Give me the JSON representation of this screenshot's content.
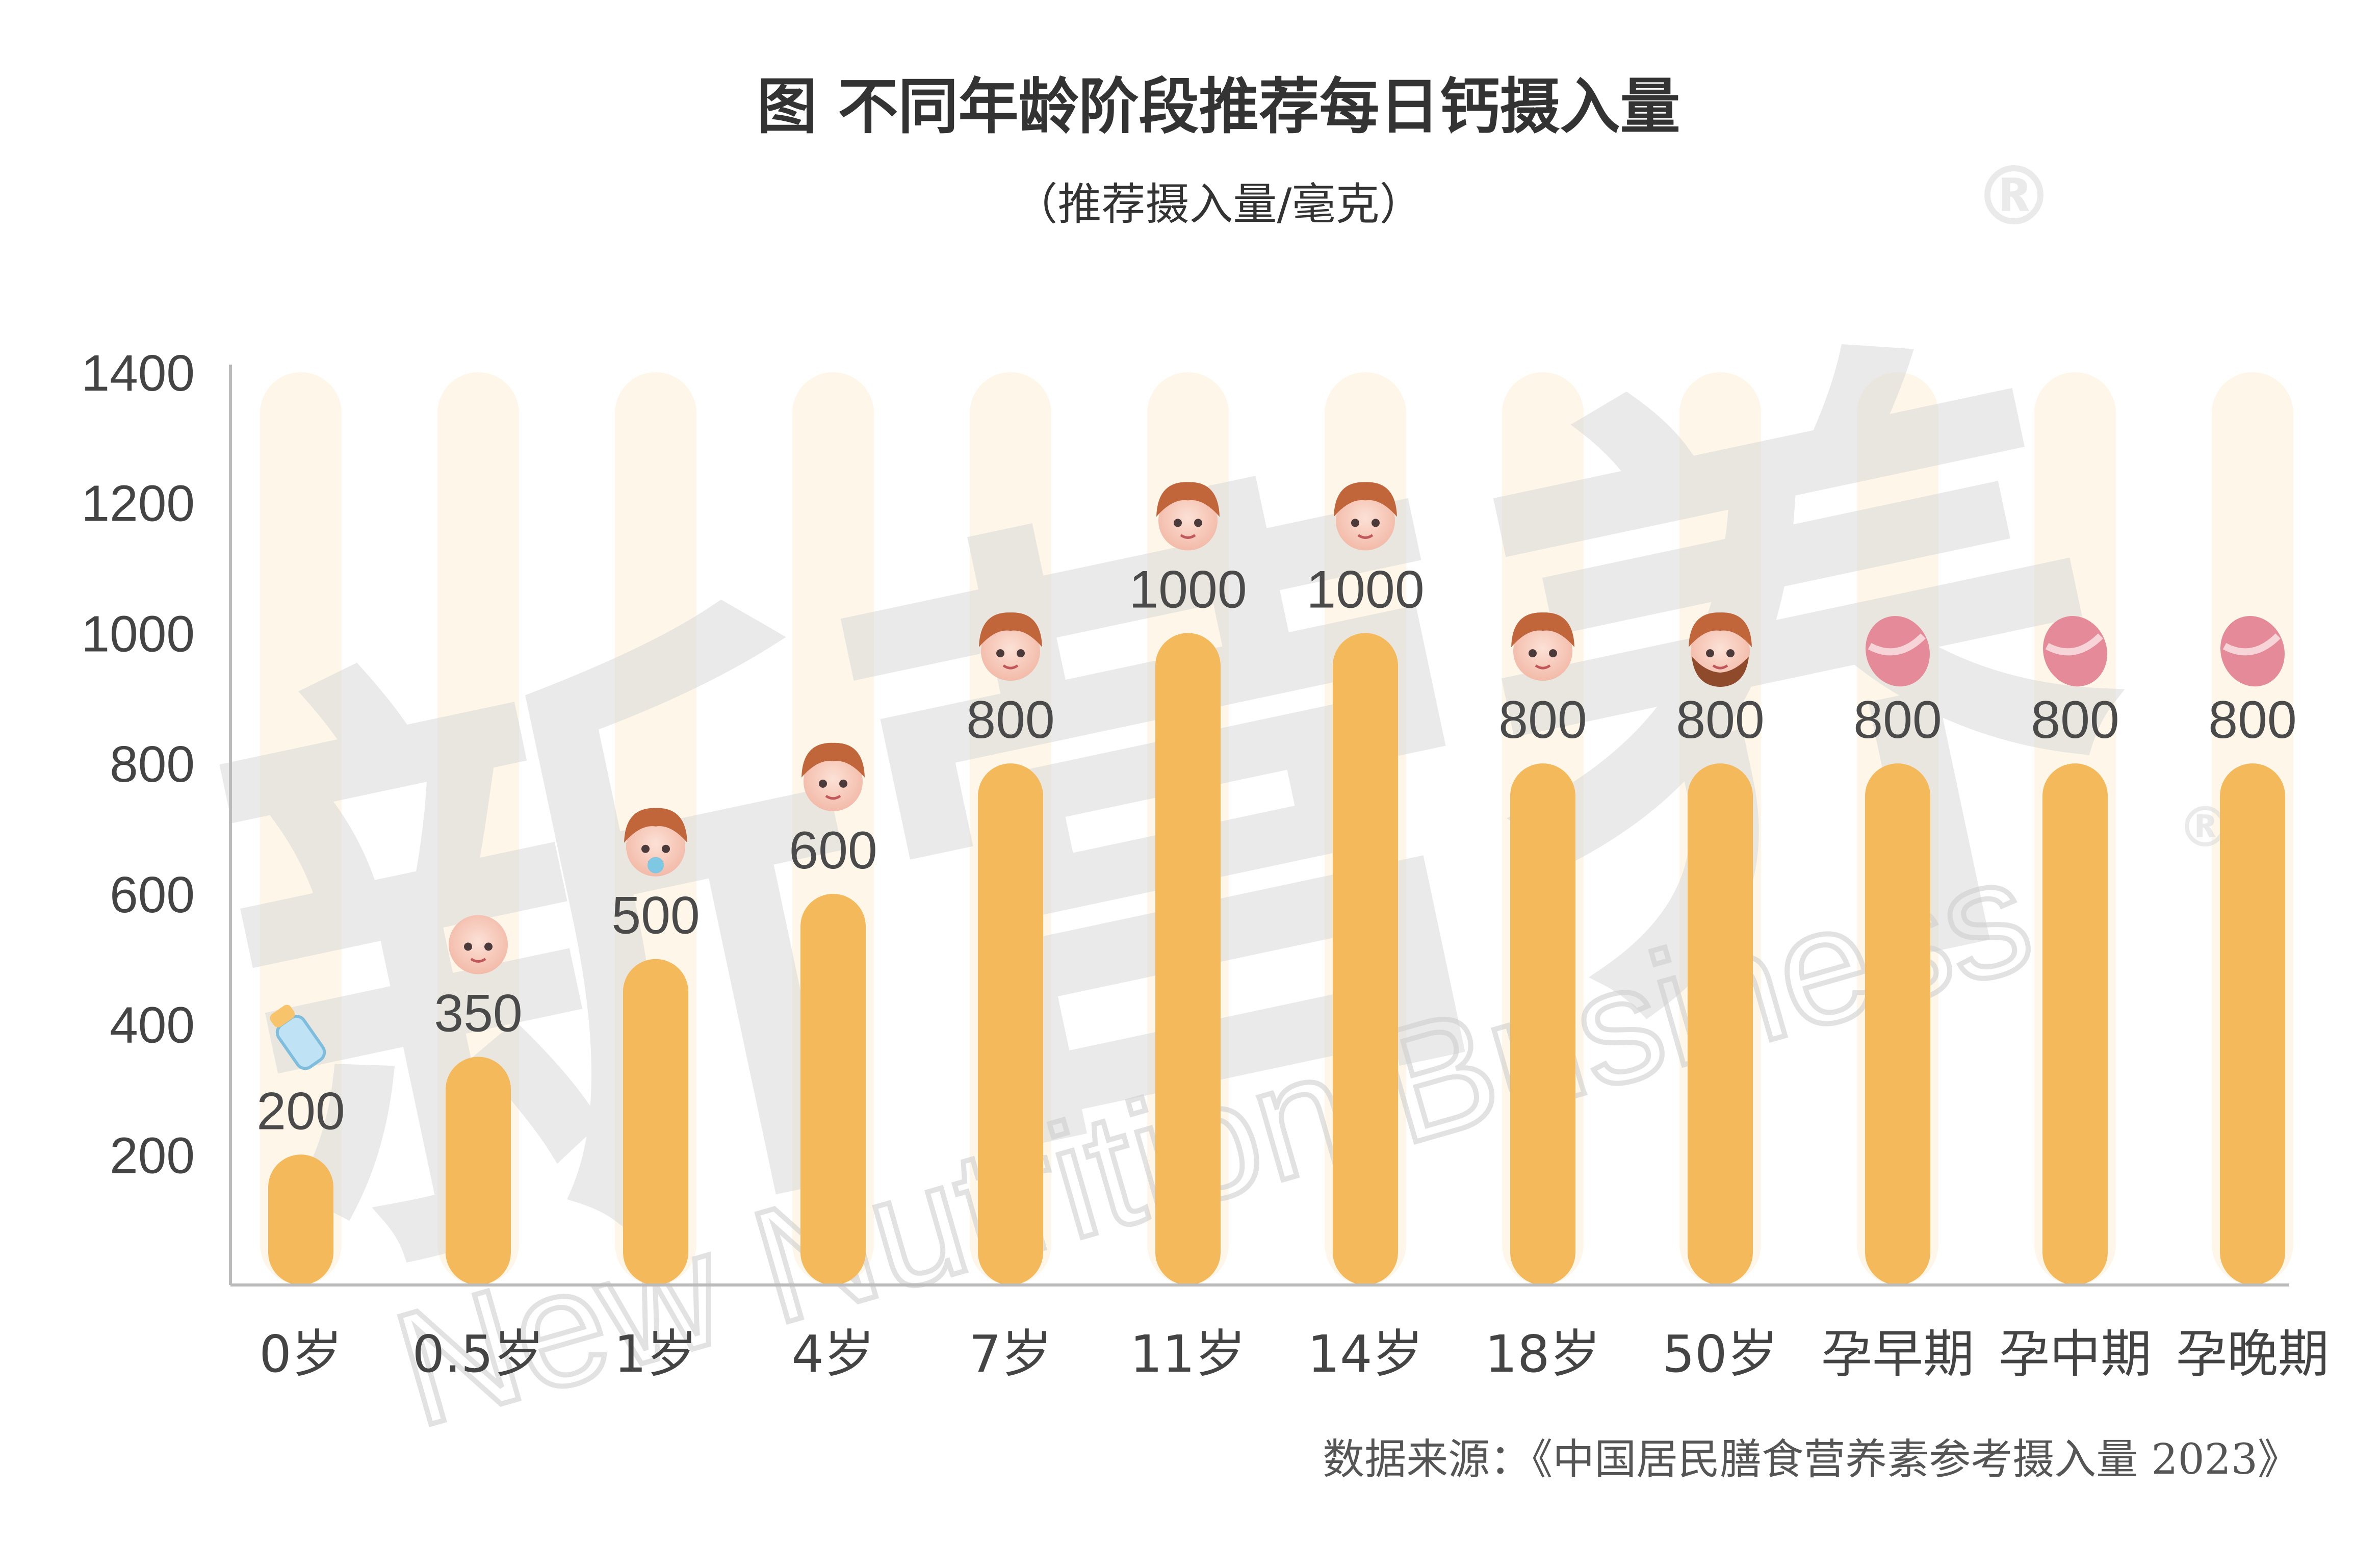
{
  "chart_data": {
    "type": "bar",
    "title": "图 不同年龄阶段推荐每日钙摄入量",
    "subtitle": "（推荐摄入量/毫克）",
    "categories": [
      "0岁",
      "0.5岁",
      "1岁",
      "4岁",
      "7岁",
      "11岁",
      "14岁",
      "18岁",
      "50岁",
      "孕早期",
      "孕中期",
      "孕晚期"
    ],
    "values": [
      200,
      350,
      500,
      600,
      800,
      1000,
      1000,
      800,
      800,
      800,
      800,
      800
    ],
    "yticks": [
      200,
      400,
      600,
      800,
      1000,
      1200,
      1400
    ],
    "ylim": [
      0,
      1400
    ],
    "data_labels": true,
    "grid": false,
    "icons": [
      "baby-bottle-icon",
      "infant-face-icon",
      "baby-face-icon",
      "child-face-icon",
      "child-face-icon",
      "boy-face-icon",
      "teen-face-icon",
      "adult-face-icon",
      "bearded-man-face-icon",
      "pregnant-belly-icon",
      "pregnant-belly-icon",
      "pregnant-belly-icon"
    ],
    "colors": {
      "bar": "#F4B95B",
      "track": "#FEF6E8",
      "axis": "#BBBBBB"
    }
  },
  "source_text": "数据来源：《中国居民膳食营养素参考摄入量 2023》",
  "watermark": {
    "cn": "新营养",
    "en": "New Nutrition Business",
    "mark": "®"
  }
}
